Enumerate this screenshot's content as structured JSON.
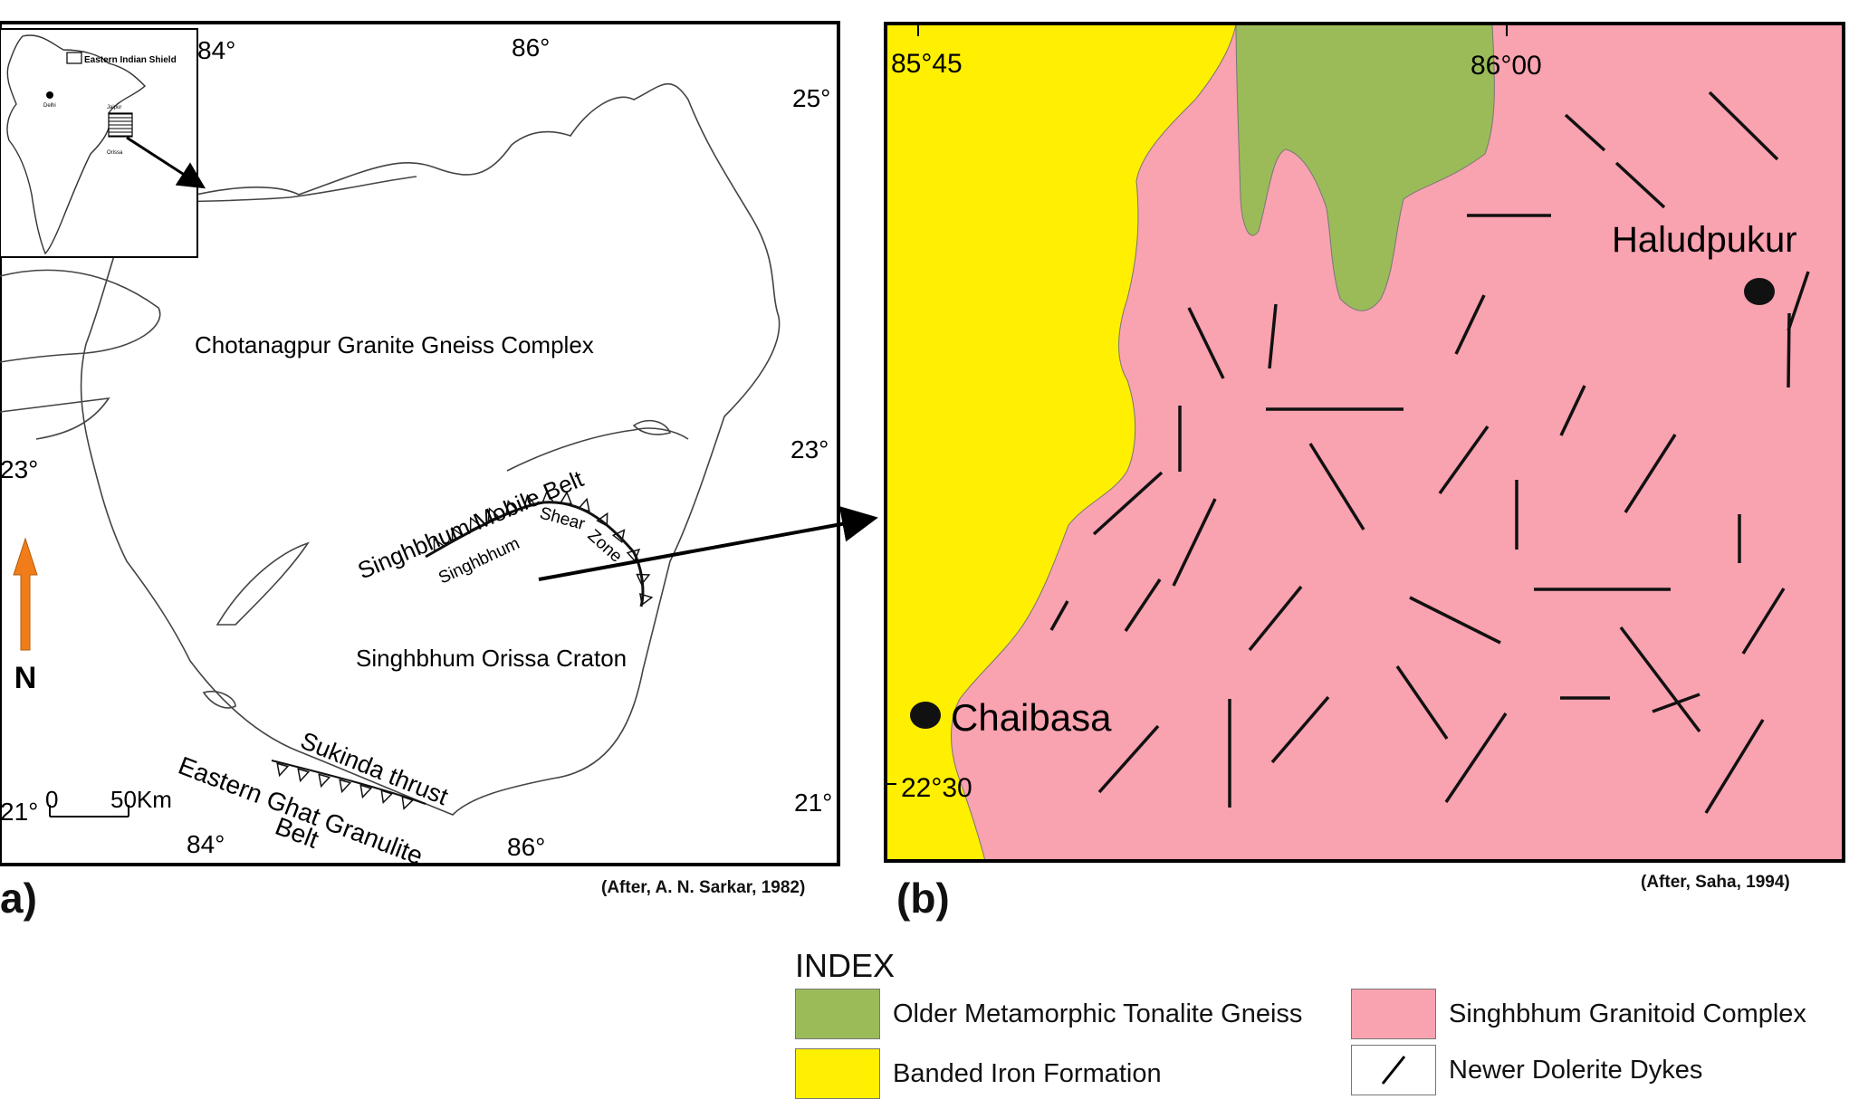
{
  "panel_a": {
    "label": "a)",
    "credit": "(After, A. N. Sarkar, 1982)",
    "inset_label": "Eastern Indian Shield",
    "inset_city_labels": [
      "Delhi",
      "Jaipur",
      "Orissa"
    ],
    "north_label": "N",
    "scale_zero": "0",
    "scale_label": "50Km",
    "lon_labels": {
      "top_84": "84°",
      "top_86": "86°",
      "bottom_84": "84°",
      "bottom_86": "86°"
    },
    "lat_labels": {
      "right_25": "25°",
      "right_23": "23°",
      "right_21": "21°",
      "left_23": "23°",
      "left_21": "21°"
    },
    "regions": {
      "chotanagpur": "Chotanagpur Granite Gneiss Complex",
      "mobile_belt": "Singhbhum Mobile Belt",
      "shear_zone_1": "Singhbhum",
      "shear_zone_2": "Shear",
      "shear_zone_3": "Zone",
      "craton": "Singhbhum Orissa Craton",
      "sukinda": "Sukinda thrust",
      "eastern_ghat_1": "Eastern Ghat Granulite",
      "eastern_ghat_2": "Belt"
    }
  },
  "panel_b": {
    "label": "(b)",
    "credit": "(After, Saha, 1994)",
    "coord_labels": {
      "lon_1": "85°45",
      "lon_2": "86°00",
      "lat": "22°30"
    },
    "places": {
      "chaibasa": "Chaibasa",
      "haludpukur": "Haludpukur"
    }
  },
  "legend": {
    "title": "INDEX",
    "items": [
      {
        "label": "Older Metamorphic Tonalite Gneiss",
        "color": "#9bbb59"
      },
      {
        "label": "Singhbhum Granitoid Complex",
        "color": "#f9a2b0"
      },
      {
        "label": "Banded Iron Formation",
        "color": "#ffef00"
      },
      {
        "label": "Newer Dolerite Dykes",
        "color": "#ffffff"
      }
    ]
  },
  "colors": {
    "bif": "#ffef00",
    "granitoid": "#f9a2b0",
    "gneiss": "#9bbb59",
    "north_arrow": "#f07d1a"
  }
}
